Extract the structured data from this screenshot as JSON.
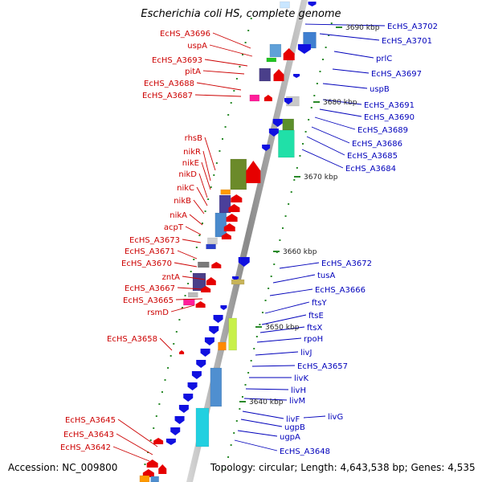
{
  "title": "Escherichia coli HS, complete genome",
  "footer": {
    "accession": "Accession: NC_009800",
    "topology": "Topology: circular; Length: 4,643,538 bp; Genes: 4,535"
  },
  "colors": {
    "forward_gene": "#e60000",
    "reverse_gene": "#1010e0",
    "backbone": "#9a9a9a",
    "tick": "#2a8a2a",
    "forward_label": "#cc0000",
    "reverse_label": "#0000bb"
  },
  "scale_labels": [
    "3690 kbp",
    "3680 kbp",
    "3670 kbp",
    "3660 kbp",
    "3650 kbp",
    "3640 kbp"
  ],
  "left_labels": [
    "EcHS_A3696",
    "uspA",
    "EcHS_A3693",
    "pitA",
    "EcHS_A3688",
    "EcHS_A3687",
    "rhsB",
    "nikR",
    "nikE",
    "nikD",
    "nikC",
    "nikB",
    "nikA",
    "acpT",
    "EcHS_A3673",
    "EcHS_A3671",
    "EcHS_A3670",
    "zntA",
    "EcHS_A3667",
    "EcHS_A3665",
    "rsmD",
    "EcHS_A3658",
    "EcHS_A3645",
    "EcHS_A3643",
    "EcHS_A3642"
  ],
  "right_labels": [
    "EcHS_A3702",
    "EcHS_A3701",
    "prlC",
    "EcHS_A3697",
    "uspB",
    "EcHS_A3691",
    "EcHS_A3690",
    "EcHS_A3689",
    "EcHS_A3686",
    "EcHS_A3685",
    "EcHS_A3684",
    "EcHS_A3672",
    "tusA",
    "EcHS_A3666",
    "ftsY",
    "ftsE",
    "ftsX",
    "rpoH",
    "livJ",
    "EcHS_A3657",
    "livK",
    "livH",
    "livM",
    "livF",
    "livG",
    "ugpB",
    "ugpA",
    "EcHS_A3648"
  ]
}
